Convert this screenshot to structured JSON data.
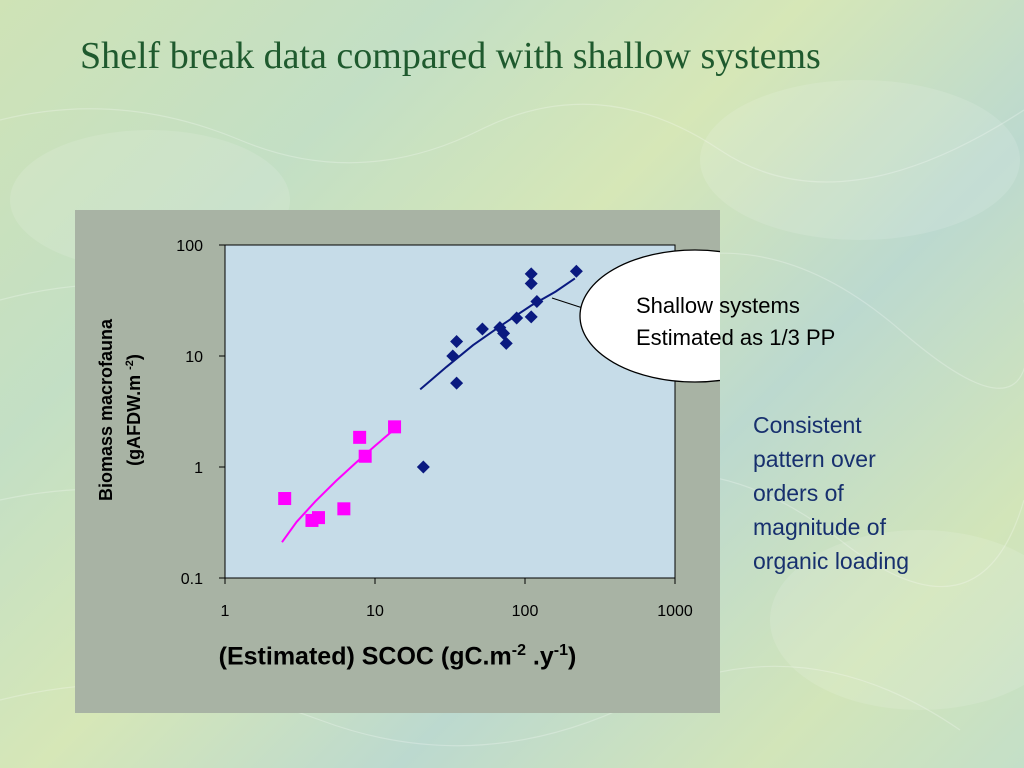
{
  "slide": {
    "title": "Shelf break data compared with shallow systems",
    "callout": {
      "line1": "Shallow systems",
      "line2": "Estimated as 1/3 PP"
    },
    "side_note": [
      "Consistent",
      "pattern over",
      "orders of",
      "magnitude of",
      "organic loading"
    ]
  },
  "chart_data": {
    "type": "scatter",
    "x_scale": "log",
    "y_scale": "log",
    "xlim": [
      1,
      1000
    ],
    "ylim": [
      0.1,
      100
    ],
    "x_ticks": [
      "1",
      "10",
      "100",
      "1000"
    ],
    "y_ticks": [
      "0.1",
      "1",
      "10",
      "100"
    ],
    "xlabel": {
      "main": "(Estimated) SCOC (gC.m",
      "sup1": "-2",
      "mid": " .y",
      "sup2": "-1",
      "end": ")"
    },
    "ylabel": {
      "line1": "Biomass macrofauna",
      "line2_main": "(gAFDW.m",
      "line2_sup": "-2",
      "line2_end": ")"
    },
    "plot_background": "#c6dce8",
    "series": [
      {
        "marker": "square",
        "color": "#ff00ff",
        "points": [
          [
            2.5,
            0.52
          ],
          [
            3.8,
            0.33
          ],
          [
            4.2,
            0.35
          ],
          [
            6.2,
            0.42
          ],
          [
            7.9,
            1.85
          ],
          [
            8.6,
            1.25
          ],
          [
            13.5,
            2.3
          ]
        ],
        "trend": [
          [
            2.4,
            0.21
          ],
          [
            3.0,
            0.32
          ],
          [
            4.0,
            0.49
          ],
          [
            5.5,
            0.75
          ],
          [
            7.5,
            1.1
          ],
          [
            10,
            1.55
          ],
          [
            13,
            2.1
          ]
        ]
      },
      {
        "marker": "diamond",
        "color": "#0a1a80",
        "points": [
          [
            21,
            1.0
          ],
          [
            33,
            10.0
          ],
          [
            35,
            13.5
          ],
          [
            35,
            5.7
          ],
          [
            52,
            17.5
          ],
          [
            68,
            18.0
          ],
          [
            72,
            16.0
          ],
          [
            75,
            13.0
          ],
          [
            88,
            22.0
          ],
          [
            110,
            22.5
          ],
          [
            110,
            45.0
          ],
          [
            110,
            55.0
          ],
          [
            120,
            31.0
          ],
          [
            220,
            58.0
          ]
        ],
        "trend": [
          [
            20,
            5.0
          ],
          [
            30,
            8.0
          ],
          [
            45,
            12.5
          ],
          [
            70,
            19.0
          ],
          [
            110,
            28.5
          ],
          [
            160,
            38.0
          ],
          [
            215,
            50.0
          ]
        ]
      }
    ],
    "series_colors": {
      "shallow": "#ff00ff",
      "shelf": "#0a1a80"
    }
  }
}
